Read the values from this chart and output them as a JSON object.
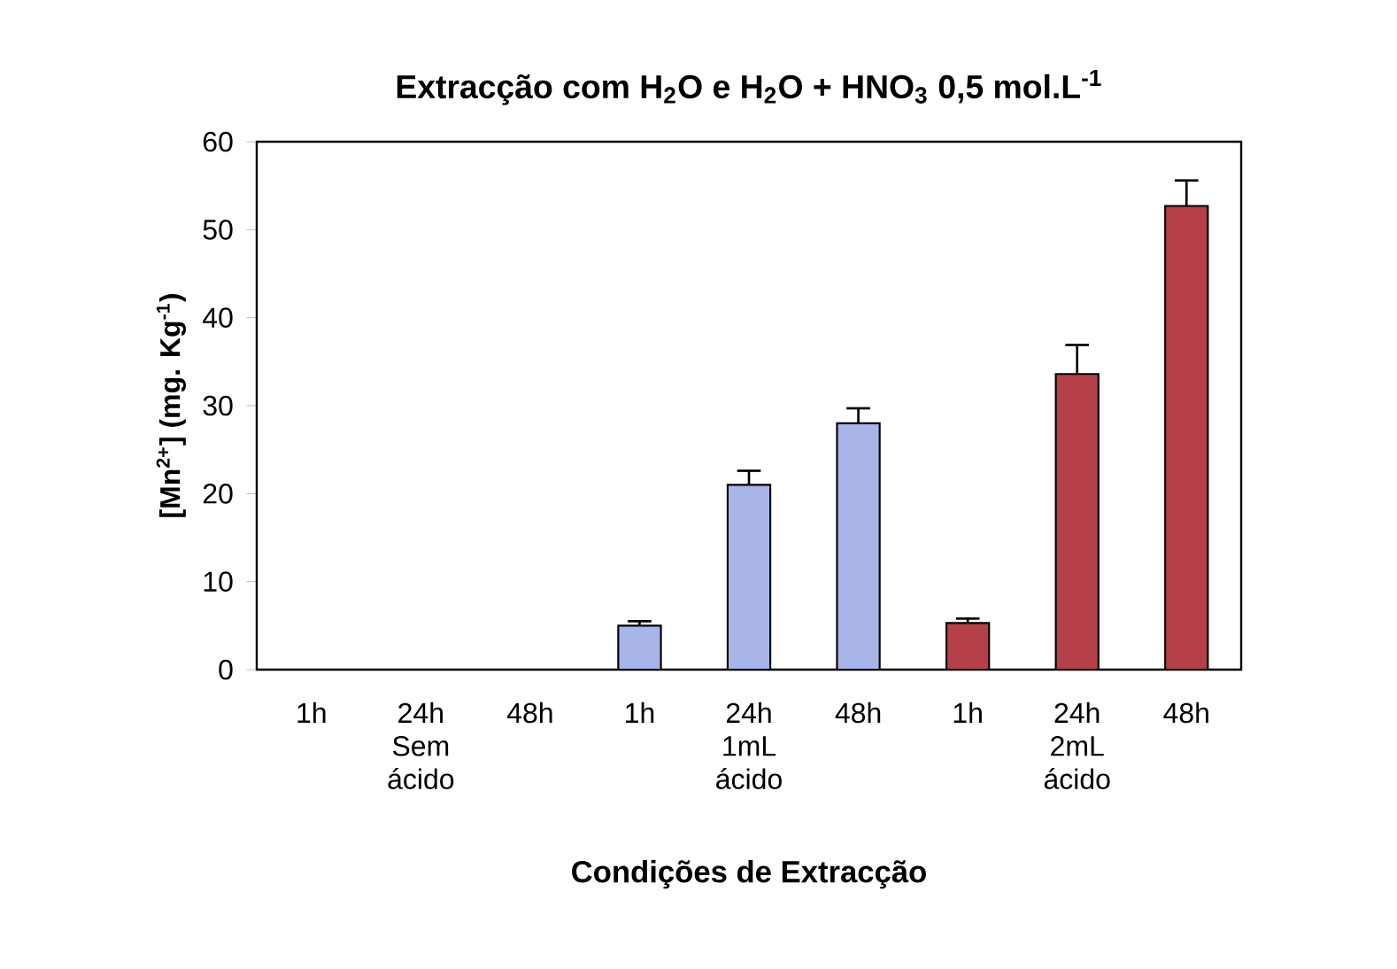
{
  "chart_data": {
    "type": "bar",
    "title": "**Extracção com H$_{2}$O e H$_{2}$O + HNO$_{3}$ 0,5 mol.L$^{-1}$**",
    "xlabel": "Condições de Extracção",
    "ylabel": "[Mn$^{2+}$] (mg. Kg$^{-1}$)",
    "categories": [
      "1h",
      "24h",
      "48h",
      "1h",
      "24h",
      "48h",
      "1h",
      "24h",
      "48h"
    ],
    "values": [
      0,
      0,
      0,
      5,
      21,
      28,
      5.3,
      33.6,
      52.7
    ],
    "errors": [
      null,
      null,
      null,
      0.5,
      1.6,
      1.7,
      0.5,
      3.3,
      2.9
    ],
    "colors": [
      "#a9b4e8",
      "#a9b4e8",
      "#a9b4e8",
      "#a9b4e8",
      "#a9b4e8",
      "#a9b4e8",
      "#b5404a",
      "#b5404a",
      "#b5404a"
    ],
    "annotations": [
      "Sem ácido",
      "1mL ácido",
      "2mL ácido"
    ],
    "ylim": [
      0,
      60
    ],
    "yticks": [
      0,
      10,
      20,
      30,
      40,
      50,
      60
    ],
    "grid": false
  }
}
